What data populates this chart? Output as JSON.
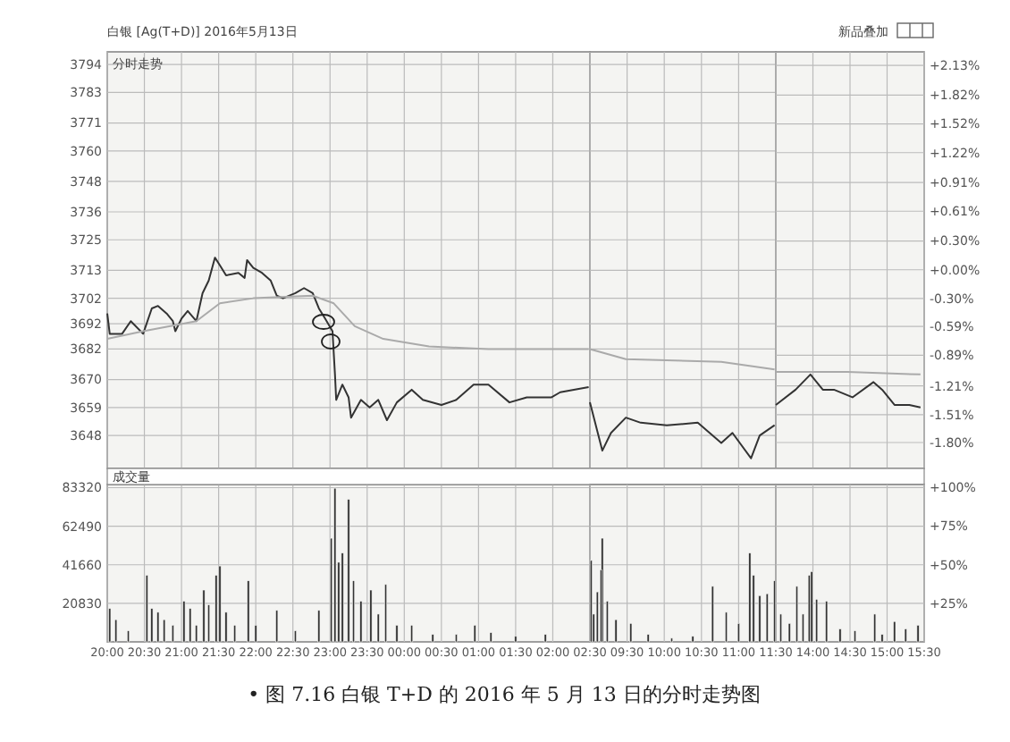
{
  "chart_data": [
    {
      "type": "line",
      "title": "白银 [Ag(T+D)] 2016年5月13日",
      "subtitle": "分时走势",
      "tick_labels": "y",
      "grid": true,
      "xlim": [
        "2016-05-12T20:00",
        "2016-05-13T02:30"
      ],
      "xticks": [
        {
          "value": "2016-05-12T20:00",
          "label": null
        },
        {
          "value": "2016-05-12T20:30",
          "label": null
        },
        {
          "value": "2016-05-12T21:00",
          "label": null
        },
        {
          "value": "2016-05-12T21:30",
          "label": null
        },
        {
          "value": "2016-05-12T22:00",
          "label": null
        },
        {
          "value": "2016-05-12T22:30",
          "label": null
        },
        {
          "value": "2016-05-12T23:00",
          "label": null
        },
        {
          "value": "2016-05-12T23:30",
          "label": null
        },
        {
          "value": "2016-05-13T00:00",
          "label": null
        },
        {
          "value": "2016-05-13T00:30",
          "label": null
        },
        {
          "value": "2016-05-13T01:00",
          "label": null
        },
        {
          "value": "2016-05-13T01:30",
          "label": null
        },
        {
          "value": "2016-05-13T02:00",
          "label": null
        },
        {
          "value": "2016-05-13T02:30",
          "label": null
        }
      ],
      "ylim": [
        3635,
        3799
      ],
      "yticks": [
        3794,
        3783,
        3771,
        3760,
        3748,
        3736,
        3725,
        3713,
        3702,
        3692,
        3682,
        3670,
        3659,
        3648
      ],
      "series": [
        {
          "color": "#333333",
          "x": [
            "2016-05-12T20:00",
            "2016-05-12T20:02",
            "2016-05-12T20:12",
            "2016-05-12T20:19",
            "2016-05-12T20:29",
            "2016-05-12T20:36",
            "2016-05-12T20:41",
            "2016-05-12T20:48",
            "2016-05-12T20:53",
            "2016-05-12T20:55",
            "2016-05-12T21:00",
            "2016-05-12T21:05",
            "2016-05-12T21:12",
            "2016-05-12T21:17",
            "2016-05-12T21:22",
            "2016-05-12T21:27",
            "2016-05-12T21:31",
            "2016-05-12T21:36",
            "2016-05-12T21:46",
            "2016-05-12T21:51",
            "2016-05-12T21:53",
            "2016-05-12T21:58",
            "2016-05-12T22:05",
            "2016-05-12T22:12",
            "2016-05-12T22:17",
            "2016-05-12T22:22",
            "2016-05-12T22:32",
            "2016-05-12T22:39",
            "2016-05-12T22:46",
            "2016-05-12T22:51",
            "2016-05-12T22:56",
            "2016-05-12T23:02",
            "2016-05-12T23:04",
            "2016-05-12T23:05",
            "2016-05-12T23:10",
            "2016-05-12T23:15",
            "2016-05-12T23:17",
            "2016-05-12T23:25",
            "2016-05-12T23:32",
            "2016-05-12T23:39",
            "2016-05-12T23:46",
            "2016-05-12T23:54",
            "2016-05-13T00:06",
            "2016-05-13T00:15",
            "2016-05-13T00:30",
            "2016-05-13T00:42",
            "2016-05-13T00:56",
            "2016-05-13T01:08",
            "2016-05-13T01:25",
            "2016-05-13T01:39",
            "2016-05-13T01:59",
            "2016-05-13T02:06",
            "2016-05-13T02:29"
          ],
          "values": [
            3696,
            3688,
            3688,
            3693,
            3688,
            3698,
            3699,
            3696,
            3693,
            3689,
            3694,
            3697,
            3693,
            3704,
            3709,
            3718,
            3715,
            3711,
            3712,
            3710,
            3717,
            3714,
            3712,
            3709,
            3703,
            3702,
            3704,
            3706,
            3704,
            3698,
            3694,
            3689,
            3672,
            3662,
            3668,
            3663,
            3655,
            3662,
            3659,
            3662,
            3654,
            3661,
            3666,
            3662,
            3660,
            3662,
            3668,
            3668,
            3661,
            3663,
            3663,
            3665,
            3667
          ]
        },
        {
          "color": "#aaaaaa",
          "x": [
            "2016-05-12T20:00",
            "2016-05-12T20:29",
            "2016-05-12T21:12",
            "2016-05-12T21:31",
            "2016-05-12T21:58",
            "2016-05-12T22:46",
            "2016-05-12T23:03",
            "2016-05-12T23:20",
            "2016-05-12T23:43",
            "2016-05-13T00:20",
            "2016-05-13T01:08",
            "2016-05-13T02:03",
            "2016-05-13T02:29"
          ],
          "values": [
            3686,
            3689,
            3693,
            3700,
            3702,
            3703,
            3700,
            3691,
            3686,
            3683,
            3682,
            3682,
            3682
          ]
        }
      ]
    },
    {
      "type": "line",
      "tick_labels": false,
      "grid": true,
      "xlim": [
        "2016-05-13T09:00",
        "2016-05-13T11:30"
      ],
      "xticks": [
        {
          "value": "2016-05-13T09:00",
          "label": null
        },
        {
          "value": "2016-05-13T09:30",
          "label": null
        },
        {
          "value": "2016-05-13T10:00",
          "label": null
        },
        {
          "value": "2016-05-13T10:30",
          "label": null
        },
        {
          "value": "2016-05-13T11:00",
          "label": null
        },
        {
          "value": "2016-05-13T11:30",
          "label": null
        }
      ],
      "ylim": [
        3635,
        3799
      ],
      "yticks": [
        3794,
        3783,
        3771,
        3760,
        3748,
        3736,
        3725,
        3713,
        3702,
        3692,
        3682,
        3670,
        3659,
        3648
      ],
      "series": [
        {
          "color": "#333333",
          "x": [
            "2016-05-13T09:00",
            "2016-05-13T09:10",
            "2016-05-13T09:17",
            "2016-05-13T09:29",
            "2016-05-13T09:41",
            "2016-05-13T10:02",
            "2016-05-13T10:27",
            "2016-05-13T10:46",
            "2016-05-13T10:55",
            "2016-05-13T11:10",
            "2016-05-13T11:17",
            "2016-05-13T11:29"
          ],
          "values": [
            3661,
            3642,
            3649,
            3655,
            3653,
            3652,
            3653,
            3645,
            3649,
            3639,
            3648,
            3652
          ]
        },
        {
          "color": "#aaaaaa",
          "x": [
            "2016-05-13T09:00",
            "2016-05-13T09:29",
            "2016-05-13T10:46",
            "2016-05-13T11:29"
          ],
          "values": [
            3682,
            3678,
            3677,
            3674
          ]
        }
      ]
    },
    {
      "type": "line",
      "annotations": [
        "新品叠加"
      ],
      "tick_labels": "y",
      "grid": true,
      "xlim": [
        "2016-05-13T13:30",
        "2016-05-13T15:30"
      ],
      "xticks": [
        {
          "value": "2016-05-13T13:30",
          "label": null
        },
        {
          "value": "2016-05-13T14:00",
          "label": null
        },
        {
          "value": "2016-05-13T14:30",
          "label": null
        },
        {
          "value": "2016-05-13T15:00",
          "label": null
        },
        {
          "value": "2016-05-13T15:30",
          "label": null
        }
      ],
      "ylim": [
        3635,
        3799
      ],
      "y2lim": [
        -2.07,
        2.27
      ],
      "y2ticks": [
        {
          "value": 2.13,
          "label": "+2.13%"
        },
        {
          "value": 1.82,
          "label": "+1.82%"
        },
        {
          "value": 1.52,
          "label": "+1.52%"
        },
        {
          "value": 1.22,
          "label": "+1.22%"
        },
        {
          "value": 0.91,
          "label": "+0.91%"
        },
        {
          "value": 0.61,
          "label": "+0.61%"
        },
        {
          "value": 0.3,
          "label": "+0.30%"
        },
        {
          "value": 0.0,
          "label": "+0.00%"
        },
        {
          "value": -0.3,
          "label": "-0.30%"
        },
        {
          "value": -0.59,
          "label": "-0.59%"
        },
        {
          "value": -0.89,
          "label": "-0.89%"
        },
        {
          "value": -1.21,
          "label": "-1.21%"
        },
        {
          "value": -1.51,
          "label": "-1.51%"
        },
        {
          "value": -1.8,
          "label": "-1.80%"
        }
      ],
      "series": [
        {
          "color": "#333333",
          "x": [
            "2016-05-13T13:30",
            "2016-05-13T13:46",
            "2016-05-13T13:58",
            "2016-05-13T14:08",
            "2016-05-13T14:17",
            "2016-05-13T14:32",
            "2016-05-13T14:49",
            "2016-05-13T14:56",
            "2016-05-13T15:06",
            "2016-05-13T15:18",
            "2016-05-13T15:27"
          ],
          "values": [
            3660,
            3666,
            3672,
            3666,
            3666,
            3663,
            3669,
            3666,
            3660,
            3660,
            3659
          ]
        },
        {
          "color": "#aaaaaa",
          "x": [
            "2016-05-13T13:30",
            "2016-05-13T14:28",
            "2016-05-13T15:27"
          ],
          "values": [
            3673,
            3673,
            3672
          ]
        }
      ]
    },
    {
      "type": "bar",
      "title": "成交量",
      "annotations": [
        "• 图 7.16  白银 T+D 的 2016 年 5 月 13 日的分时走势图"
      ],
      "grid": true,
      "xlim": [
        "2016-05-12T20:00",
        "2016-05-13T02:30"
      ],
      "xticks": [
        {
          "value": "2016-05-12T20:00",
          "label": "20:00"
        },
        {
          "value": "2016-05-12T20:30",
          "label": "20:30"
        },
        {
          "value": "2016-05-12T21:00",
          "label": "21:00"
        },
        {
          "value": "2016-05-12T21:30",
          "label": "21:30"
        },
        {
          "value": "2016-05-12T22:00",
          "label": "22:00"
        },
        {
          "value": "2016-05-12T22:30",
          "label": "22:30"
        },
        {
          "value": "2016-05-12T23:00",
          "label": "23:00"
        },
        {
          "value": "2016-05-12T23:30",
          "label": "23:30"
        },
        {
          "value": "2016-05-13T00:00",
          "label": "00:00"
        },
        {
          "value": "2016-05-13T00:30",
          "label": "00:30"
        },
        {
          "value": "2016-05-13T01:00",
          "label": "01:00"
        },
        {
          "value": "2016-05-13T01:30",
          "label": "01:30"
        },
        {
          "value": "2016-05-13T02:00",
          "label": "02:00"
        },
        {
          "value": "2016-05-13T02:30",
          "label": "02:30"
        }
      ],
      "ylim": [
        0,
        85000
      ],
      "yticks": [
        20830,
        41660,
        62490,
        83320
      ],
      "series": [
        {
          "color": "#333333",
          "x": [
            "2016-05-12T20:02",
            "2016-05-12T20:07",
            "2016-05-12T20:17",
            "2016-05-12T20:32",
            "2016-05-12T20:36",
            "2016-05-12T20:41",
            "2016-05-12T20:46",
            "2016-05-12T20:53",
            "2016-05-12T21:02",
            "2016-05-12T21:07",
            "2016-05-12T21:12",
            "2016-05-12T21:18",
            "2016-05-12T21:22",
            "2016-05-12T21:28",
            "2016-05-12T21:31",
            "2016-05-12T21:36",
            "2016-05-12T21:43",
            "2016-05-12T21:54",
            "2016-05-12T22:00",
            "2016-05-12T22:17",
            "2016-05-12T22:32",
            "2016-05-12T22:51",
            "2016-05-12T23:01",
            "2016-05-12T23:04",
            "2016-05-12T23:07",
            "2016-05-12T23:10",
            "2016-05-12T23:15",
            "2016-05-12T23:19",
            "2016-05-12T23:25",
            "2016-05-12T23:33",
            "2016-05-12T23:39",
            "2016-05-12T23:45",
            "2016-05-12T23:54",
            "2016-05-13T00:06",
            "2016-05-13T00:23",
            "2016-05-13T00:42",
            "2016-05-13T00:57",
            "2016-05-13T01:10",
            "2016-05-13T01:30",
            "2016-05-13T01:54"
          ],
          "values": [
            18000,
            12000,
            6000,
            36000,
            18000,
            16000,
            12000,
            9000,
            22000,
            18000,
            9000,
            28000,
            20000,
            36000,
            41000,
            16000,
            9000,
            33000,
            9000,
            17000,
            6000,
            17000,
            56000,
            83000,
            43000,
            48000,
            77000,
            33000,
            22000,
            28000,
            15000,
            31000,
            9000,
            9000,
            4000,
            4000,
            9000,
            5000,
            3000,
            4000
          ]
        }
      ]
    },
    {
      "type": "bar",
      "tick_labels": "x",
      "grid": true,
      "xlim": [
        "2016-05-13T09:00",
        "2016-05-13T11:30"
      ],
      "xticks": [
        {
          "value": "2016-05-13T09:00",
          "label": null
        },
        {
          "value": "2016-05-13T09:30",
          "label": "09:30"
        },
        {
          "value": "2016-05-13T10:00",
          "label": "10:00"
        },
        {
          "value": "2016-05-13T10:30",
          "label": "10:30"
        },
        {
          "value": "2016-05-13T11:00",
          "label": "11:00"
        },
        {
          "value": "2016-05-13T11:30",
          "label": "11:30"
        }
      ],
      "ylim": [
        0,
        85000
      ],
      "yticks": [
        20830,
        41660,
        62490,
        83320
      ],
      "series": [
        {
          "color": "#333333",
          "x": [
            "2016-05-13T09:01",
            "2016-05-13T09:03",
            "2016-05-13T09:06",
            "2016-05-13T09:09",
            "2016-05-13T09:10",
            "2016-05-13T09:14",
            "2016-05-13T09:21",
            "2016-05-13T09:33",
            "2016-05-13T09:47",
            "2016-05-13T10:06",
            "2016-05-13T10:23",
            "2016-05-13T10:39",
            "2016-05-13T10:50",
            "2016-05-13T11:00",
            "2016-05-13T11:09",
            "2016-05-13T11:12",
            "2016-05-13T11:17",
            "2016-05-13T11:23",
            "2016-05-13T11:29"
          ],
          "values": [
            44000,
            15000,
            27000,
            39000,
            56000,
            22000,
            12000,
            10000,
            4000,
            2000,
            3000,
            30000,
            16000,
            10000,
            48000,
            36000,
            25000,
            26000,
            33000
          ]
        }
      ]
    },
    {
      "type": "bar",
      "grid": true,
      "xlim": [
        "2016-05-13T13:30",
        "2016-05-13T15:30"
      ],
      "xticks": [
        {
          "value": "2016-05-13T13:30",
          "label": null
        },
        {
          "value": "2016-05-13T14:00",
          "label": "14:00"
        },
        {
          "value": "2016-05-13T14:30",
          "label": "14:30"
        },
        {
          "value": "2016-05-13T15:00",
          "label": "15:00"
        },
        {
          "value": "2016-05-13T15:30",
          "label": "15:30"
        }
      ],
      "ylim": [
        0,
        85000
      ],
      "y2lim": [
        0,
        102
      ],
      "y2ticks": [
        {
          "value": 25,
          "label": "+25%"
        },
        {
          "value": 50,
          "label": "+50%"
        },
        {
          "value": 75,
          "label": "+75%"
        },
        {
          "value": 100,
          "label": "+100%"
        }
      ],
      "series": [
        {
          "color": "#333333",
          "x": [
            "2016-05-13T13:34",
            "2016-05-13T13:41",
            "2016-05-13T13:47",
            "2016-05-13T13:52",
            "2016-05-13T13:57",
            "2016-05-13T13:59",
            "2016-05-13T14:03",
            "2016-05-13T14:11",
            "2016-05-13T14:22",
            "2016-05-13T14:34",
            "2016-05-13T14:50",
            "2016-05-13T14:56",
            "2016-05-13T15:06",
            "2016-05-13T15:15",
            "2016-05-13T15:25"
          ],
          "values": [
            15000,
            10000,
            30000,
            15000,
            36000,
            38000,
            23000,
            22000,
            7000,
            6000,
            15000,
            4000,
            11000,
            7000,
            9000
          ]
        }
      ]
    }
  ]
}
